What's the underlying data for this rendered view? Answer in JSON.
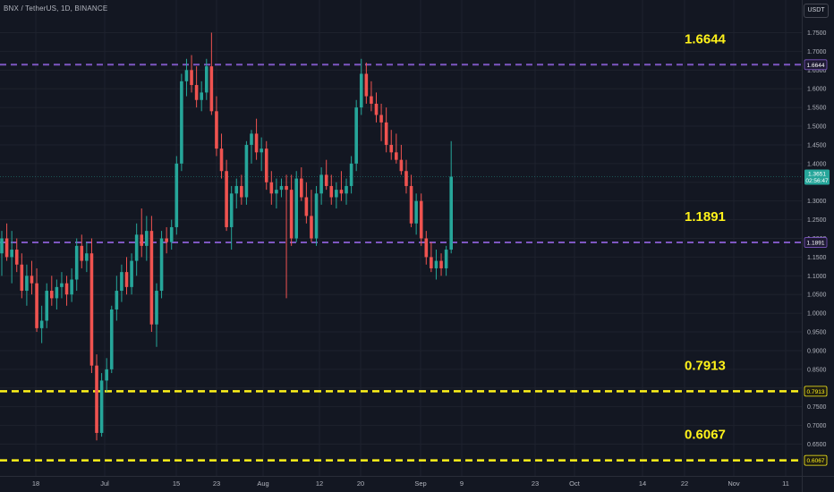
{
  "header": {
    "symbol": "BNX / TetherUS, 1D, BINANCE",
    "currency": "USDT"
  },
  "colors": {
    "background": "#131722",
    "up": "#26a69a",
    "down": "#ef5350",
    "purple_line": "#7e57c2",
    "yellow_line": "#fff21a",
    "axis_text": "#b2b5be"
  },
  "chart_data": {
    "type": "candlestick",
    "title": "",
    "xlabel": "",
    "ylabel": "",
    "ylim": [
      0.6,
      1.78
    ],
    "price_ticks": [
      "1.7500",
      "1.7000",
      "1.6500",
      "1.6000",
      "1.5500",
      "1.5000",
      "1.4500",
      "1.4000",
      "1.3500",
      "1.3000",
      "1.2500",
      "1.2000",
      "1.1500",
      "1.1000",
      "1.0500",
      "1.0000",
      "0.9500",
      "0.9000",
      "0.8500",
      "0.8000",
      "0.7500",
      "0.7000",
      "0.6500"
    ],
    "time_ticks": [
      "18",
      "Jul",
      "15",
      "23",
      "Aug",
      "12",
      "20",
      "Sep",
      "9",
      "23",
      "Oct",
      "14",
      "22",
      "Nov",
      "11"
    ],
    "current_price": 1.3651,
    "countdown": "02:56:47",
    "levels": [
      {
        "value": 1.6644,
        "label": "1.6644",
        "style": "purple-dashed"
      },
      {
        "value": 1.1891,
        "label": "1.1891",
        "style": "purple-dashed"
      },
      {
        "value": 0.7913,
        "label": "0.7913",
        "style": "yellow-dashed"
      },
      {
        "value": 0.6067,
        "label": "0.6067",
        "style": "yellow-dashed"
      }
    ],
    "grid": "on",
    "candles": [
      {
        "o": 1.16,
        "h": 1.22,
        "l": 1.1,
        "c": 1.2
      },
      {
        "o": 1.2,
        "h": 1.24,
        "l": 1.14,
        "c": 1.15
      },
      {
        "o": 1.15,
        "h": 1.22,
        "l": 1.08,
        "c": 1.17
      },
      {
        "o": 1.17,
        "h": 1.2,
        "l": 1.11,
        "c": 1.13
      },
      {
        "o": 1.13,
        "h": 1.16,
        "l": 1.04,
        "c": 1.06
      },
      {
        "o": 1.06,
        "h": 1.13,
        "l": 1.02,
        "c": 1.1
      },
      {
        "o": 1.1,
        "h": 1.14,
        "l": 1.05,
        "c": 1.08
      },
      {
        "o": 1.08,
        "h": 1.12,
        "l": 0.95,
        "c": 0.96
      },
      {
        "o": 0.96,
        "h": 1.02,
        "l": 0.92,
        "c": 0.98
      },
      {
        "o": 0.98,
        "h": 1.08,
        "l": 0.96,
        "c": 1.06
      },
      {
        "o": 1.06,
        "h": 1.1,
        "l": 1.02,
        "c": 1.04
      },
      {
        "o": 1.04,
        "h": 1.09,
        "l": 1.01,
        "c": 1.07
      },
      {
        "o": 1.07,
        "h": 1.11,
        "l": 1.04,
        "c": 1.08
      },
      {
        "o": 1.08,
        "h": 1.1,
        "l": 1.02,
        "c": 1.05
      },
      {
        "o": 1.05,
        "h": 1.12,
        "l": 1.03,
        "c": 1.09
      },
      {
        "o": 1.09,
        "h": 1.2,
        "l": 1.06,
        "c": 1.18
      },
      {
        "o": 1.18,
        "h": 1.21,
        "l": 1.12,
        "c": 1.14
      },
      {
        "o": 1.14,
        "h": 1.19,
        "l": 1.11,
        "c": 1.16
      },
      {
        "o": 1.16,
        "h": 1.2,
        "l": 0.84,
        "c": 0.86
      },
      {
        "o": 0.86,
        "h": 0.89,
        "l": 0.66,
        "c": 0.68
      },
      {
        "o": 0.68,
        "h": 0.84,
        "l": 0.67,
        "c": 0.82
      },
      {
        "o": 0.82,
        "h": 0.88,
        "l": 0.79,
        "c": 0.85
      },
      {
        "o": 0.85,
        "h": 1.02,
        "l": 0.84,
        "c": 1.01
      },
      {
        "o": 1.01,
        "h": 1.1,
        "l": 0.98,
        "c": 1.06
      },
      {
        "o": 1.06,
        "h": 1.13,
        "l": 1.03,
        "c": 1.11
      },
      {
        "o": 1.11,
        "h": 1.15,
        "l": 1.05,
        "c": 1.07
      },
      {
        "o": 1.07,
        "h": 1.16,
        "l": 1.05,
        "c": 1.14
      },
      {
        "o": 1.14,
        "h": 1.24,
        "l": 1.1,
        "c": 1.21
      },
      {
        "o": 1.21,
        "h": 1.28,
        "l": 1.15,
        "c": 1.18
      },
      {
        "o": 1.18,
        "h": 1.26,
        "l": 1.14,
        "c": 1.22
      },
      {
        "o": 1.22,
        "h": 1.26,
        "l": 0.95,
        "c": 0.97
      },
      {
        "o": 0.97,
        "h": 1.08,
        "l": 0.91,
        "c": 1.06
      },
      {
        "o": 1.06,
        "h": 1.22,
        "l": 1.04,
        "c": 1.2
      },
      {
        "o": 1.2,
        "h": 1.23,
        "l": 1.16,
        "c": 1.19
      },
      {
        "o": 1.19,
        "h": 1.25,
        "l": 1.17,
        "c": 1.23
      },
      {
        "o": 1.23,
        "h": 1.42,
        "l": 1.21,
        "c": 1.4
      },
      {
        "o": 1.4,
        "h": 1.64,
        "l": 1.38,
        "c": 1.62
      },
      {
        "o": 1.62,
        "h": 1.68,
        "l": 1.58,
        "c": 1.65
      },
      {
        "o": 1.65,
        "h": 1.69,
        "l": 1.59,
        "c": 1.61
      },
      {
        "o": 1.61,
        "h": 1.66,
        "l": 1.55,
        "c": 1.57
      },
      {
        "o": 1.57,
        "h": 1.62,
        "l": 1.54,
        "c": 1.59
      },
      {
        "o": 1.59,
        "h": 1.68,
        "l": 1.57,
        "c": 1.66
      },
      {
        "o": 1.66,
        "h": 1.75,
        "l": 1.53,
        "c": 1.54
      },
      {
        "o": 1.54,
        "h": 1.58,
        "l": 1.42,
        "c": 1.44
      },
      {
        "o": 1.44,
        "h": 1.48,
        "l": 1.36,
        "c": 1.38
      },
      {
        "o": 1.38,
        "h": 1.41,
        "l": 1.22,
        "c": 1.23
      },
      {
        "o": 1.23,
        "h": 1.34,
        "l": 1.17,
        "c": 1.32
      },
      {
        "o": 1.32,
        "h": 1.36,
        "l": 1.28,
        "c": 1.34
      },
      {
        "o": 1.34,
        "h": 1.37,
        "l": 1.29,
        "c": 1.31
      },
      {
        "o": 1.31,
        "h": 1.46,
        "l": 1.29,
        "c": 1.45
      },
      {
        "o": 1.45,
        "h": 1.49,
        "l": 1.4,
        "c": 1.48
      },
      {
        "o": 1.48,
        "h": 1.52,
        "l": 1.41,
        "c": 1.43
      },
      {
        "o": 1.43,
        "h": 1.47,
        "l": 1.38,
        "c": 1.44
      },
      {
        "o": 1.44,
        "h": 1.46,
        "l": 1.33,
        "c": 1.35
      },
      {
        "o": 1.35,
        "h": 1.38,
        "l": 1.29,
        "c": 1.32
      },
      {
        "o": 1.32,
        "h": 1.36,
        "l": 1.28,
        "c": 1.33
      },
      {
        "o": 1.33,
        "h": 1.36,
        "l": 1.31,
        "c": 1.34
      },
      {
        "o": 1.34,
        "h": 1.37,
        "l": 1.04,
        "c": 1.33
      },
      {
        "o": 1.33,
        "h": 1.37,
        "l": 1.18,
        "c": 1.2
      },
      {
        "o": 1.2,
        "h": 1.38,
        "l": 1.19,
        "c": 1.36
      },
      {
        "o": 1.36,
        "h": 1.39,
        "l": 1.3,
        "c": 1.31
      },
      {
        "o": 1.31,
        "h": 1.35,
        "l": 1.24,
        "c": 1.26
      },
      {
        "o": 1.26,
        "h": 1.33,
        "l": 1.19,
        "c": 1.2
      },
      {
        "o": 1.2,
        "h": 1.34,
        "l": 1.18,
        "c": 1.32
      },
      {
        "o": 1.32,
        "h": 1.39,
        "l": 1.29,
        "c": 1.37
      },
      {
        "o": 1.37,
        "h": 1.41,
        "l": 1.33,
        "c": 1.34
      },
      {
        "o": 1.34,
        "h": 1.37,
        "l": 1.29,
        "c": 1.31
      },
      {
        "o": 1.31,
        "h": 1.35,
        "l": 1.28,
        "c": 1.33
      },
      {
        "o": 1.33,
        "h": 1.38,
        "l": 1.3,
        "c": 1.32
      },
      {
        "o": 1.32,
        "h": 1.36,
        "l": 1.29,
        "c": 1.34
      },
      {
        "o": 1.34,
        "h": 1.42,
        "l": 1.32,
        "c": 1.4
      },
      {
        "o": 1.4,
        "h": 1.57,
        "l": 1.38,
        "c": 1.55
      },
      {
        "o": 1.55,
        "h": 1.68,
        "l": 1.53,
        "c": 1.64
      },
      {
        "o": 1.64,
        "h": 1.67,
        "l": 1.56,
        "c": 1.58
      },
      {
        "o": 1.58,
        "h": 1.62,
        "l": 1.54,
        "c": 1.56
      },
      {
        "o": 1.56,
        "h": 1.59,
        "l": 1.51,
        "c": 1.53
      },
      {
        "o": 1.53,
        "h": 1.56,
        "l": 1.46,
        "c": 1.51
      },
      {
        "o": 1.51,
        "h": 1.55,
        "l": 1.43,
        "c": 1.45
      },
      {
        "o": 1.45,
        "h": 1.49,
        "l": 1.41,
        "c": 1.43
      },
      {
        "o": 1.43,
        "h": 1.48,
        "l": 1.4,
        "c": 1.41
      },
      {
        "o": 1.41,
        "h": 1.45,
        "l": 1.37,
        "c": 1.38
      },
      {
        "o": 1.38,
        "h": 1.41,
        "l": 1.32,
        "c": 1.34
      },
      {
        "o": 1.34,
        "h": 1.37,
        "l": 1.23,
        "c": 1.24
      },
      {
        "o": 1.24,
        "h": 1.32,
        "l": 1.21,
        "c": 1.3
      },
      {
        "o": 1.3,
        "h": 1.32,
        "l": 1.18,
        "c": 1.2
      },
      {
        "o": 1.2,
        "h": 1.22,
        "l": 1.13,
        "c": 1.15
      },
      {
        "o": 1.15,
        "h": 1.19,
        "l": 1.11,
        "c": 1.12
      },
      {
        "o": 1.12,
        "h": 1.17,
        "l": 1.09,
        "c": 1.14
      },
      {
        "o": 1.14,
        "h": 1.16,
        "l": 1.1,
        "c": 1.12
      },
      {
        "o": 1.12,
        "h": 1.18,
        "l": 1.1,
        "c": 1.17
      },
      {
        "o": 1.17,
        "h": 1.46,
        "l": 1.16,
        "c": 1.3651
      }
    ]
  }
}
